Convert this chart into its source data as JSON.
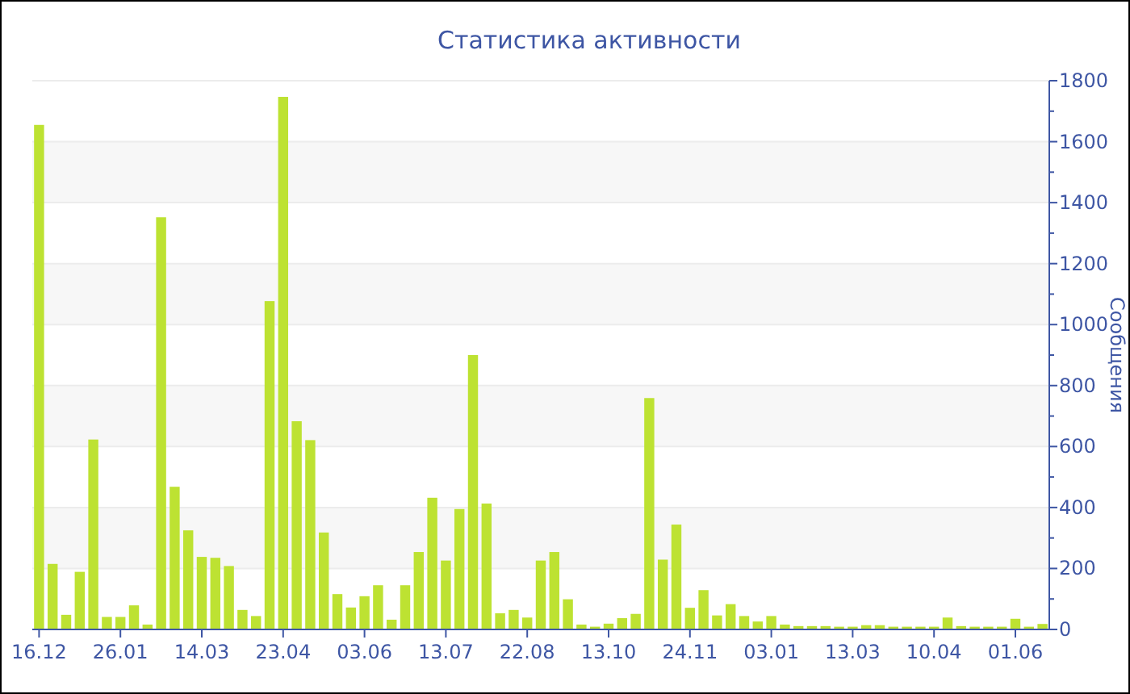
{
  "chart_data": {
    "type": "bar",
    "title": "Статистика активности",
    "ylabel": "Сообщения",
    "categories": [
      "16.12",
      null,
      null,
      null,
      null,
      null,
      "26.01",
      null,
      null,
      null,
      null,
      null,
      "14.03",
      null,
      null,
      null,
      null,
      null,
      "23.04",
      null,
      null,
      null,
      null,
      null,
      "03.06",
      null,
      null,
      null,
      null,
      null,
      "13.07",
      null,
      null,
      null,
      null,
      null,
      "22.08",
      null,
      null,
      null,
      null,
      null,
      "13.10",
      null,
      null,
      null,
      null,
      null,
      "24.11",
      null,
      null,
      null,
      null,
      null,
      "03.01",
      null,
      null,
      null,
      null,
      null,
      "13.03",
      null,
      null,
      null,
      null,
      null,
      "10.04",
      null,
      null,
      null,
      null,
      null,
      "01.06",
      null,
      null
    ],
    "values": [
      1655,
      215,
      48,
      189,
      623,
      41,
      41,
      79,
      16,
      1352,
      468,
      325,
      238,
      235,
      208,
      64,
      44,
      1077,
      1747,
      683,
      621,
      318,
      116,
      72,
      109,
      145,
      32,
      145,
      254,
      432,
      226,
      395,
      900,
      413,
      53,
      64,
      39,
      226,
      254,
      99,
      16,
      9,
      19,
      37,
      51,
      759,
      229,
      344,
      71,
      129,
      46,
      83,
      44,
      26,
      44,
      16,
      11,
      11,
      11,
      9,
      9,
      14,
      14,
      9,
      9,
      9,
      9,
      39,
      11,
      9,
      9,
      9,
      35,
      9,
      18
    ],
    "color": "#bde232",
    "ylim": [
      0,
      1800
    ],
    "yticks": [
      0,
      200,
      400,
      600,
      800,
      1000,
      1200,
      1400,
      1600,
      1800
    ],
    "grid": "y"
  }
}
